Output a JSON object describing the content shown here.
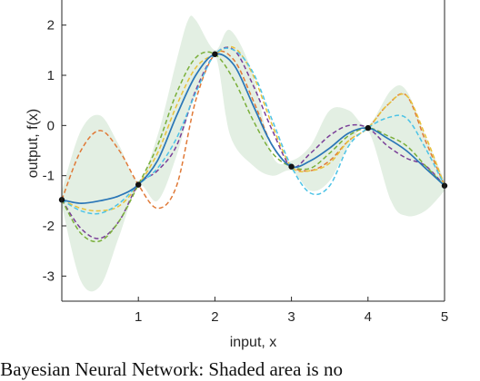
{
  "chart_data": {
    "type": "line",
    "xlabel": "input, x",
    "ylabel": "output, f(x)",
    "xlim": [
      0,
      5
    ],
    "ylim": [
      -3.5,
      2.5
    ],
    "xticks": [
      1,
      2,
      3,
      4,
      5
    ],
    "yticks": [
      -3,
      -2,
      -1,
      0,
      1,
      2
    ],
    "grid": false,
    "observations": {
      "x": [
        0,
        1,
        2,
        3,
        4,
        5
      ],
      "y": [
        -1.48,
        -1.18,
        1.42,
        -0.82,
        -0.05,
        -1.2
      ]
    },
    "shaded_band": {
      "x": [
        0,
        0.25,
        0.5,
        0.75,
        1,
        1.25,
        1.5,
        1.65,
        1.75,
        2,
        2.2,
        2.5,
        2.75,
        3,
        3.25,
        3.5,
        3.75,
        4,
        4.3,
        4.5,
        4.75,
        5
      ],
      "upper": [
        -1.3,
        -0.1,
        0.2,
        -0.4,
        -1.1,
        -0.2,
        1.3,
        2.1,
        2.1,
        1.5,
        1.9,
        1.0,
        -0.6,
        -0.7,
        -0.4,
        0.3,
        0.3,
        0.0,
        0.7,
        0.7,
        -0.2,
        -1.1
      ],
      "lower": [
        -1.6,
        -3.1,
        -3.2,
        -2.2,
        -1.2,
        -1.5,
        -0.6,
        0.2,
        0.6,
        1.4,
        -0.2,
        -0.8,
        -1.0,
        -0.9,
        -1.3,
        -1.1,
        -0.4,
        -0.1,
        -1.5,
        -1.8,
        -1.7,
        -1.3
      ]
    },
    "series": [
      {
        "style": "solid",
        "color": "#2a76b7",
        "x": [
          0,
          0.25,
          0.5,
          0.75,
          1,
          1.25,
          1.5,
          1.75,
          2,
          2.25,
          2.5,
          2.75,
          3,
          3.25,
          3.5,
          3.75,
          4,
          4.25,
          4.5,
          4.75,
          5
        ],
        "y": [
          -1.48,
          -1.55,
          -1.5,
          -1.4,
          -1.18,
          -0.7,
          0.2,
          1.0,
          1.42,
          1.2,
          0.4,
          -0.4,
          -0.82,
          -0.7,
          -0.45,
          -0.15,
          -0.05,
          -0.25,
          -0.5,
          -0.85,
          -1.2
        ]
      },
      {
        "style": "dashed",
        "color": "#e07a38",
        "x": [
          0,
          0.25,
          0.5,
          0.75,
          1,
          1.25,
          1.5,
          1.75,
          2,
          2.25,
          2.5,
          2.75,
          3,
          3.25,
          3.5,
          3.75,
          4,
          4.25,
          4.5,
          4.75,
          5
        ],
        "y": [
          -1.48,
          -0.5,
          -0.1,
          -0.5,
          -1.18,
          -1.65,
          -1.2,
          0.5,
          1.42,
          1.3,
          0.5,
          -0.4,
          -0.82,
          -0.9,
          -0.7,
          -0.3,
          -0.05,
          0.4,
          0.6,
          -0.3,
          -1.2
        ]
      },
      {
        "style": "dashed",
        "color": "#e8c13a",
        "x": [
          0,
          0.25,
          0.5,
          0.75,
          1,
          1.25,
          1.5,
          1.75,
          2,
          2.25,
          2.5,
          2.75,
          3,
          3.25,
          3.5,
          3.75,
          4,
          4.25,
          4.5,
          4.75,
          5
        ],
        "y": [
          -1.48,
          -1.65,
          -1.7,
          -1.6,
          -1.18,
          -0.55,
          0.4,
          1.15,
          1.42,
          1.55,
          1.0,
          0.0,
          -0.82,
          -0.9,
          -0.75,
          -0.3,
          -0.05,
          0.4,
          0.6,
          -0.2,
          -1.2
        ]
      },
      {
        "style": "dashed",
        "color": "#7a3e98",
        "x": [
          0,
          0.25,
          0.5,
          0.75,
          1,
          1.25,
          1.5,
          1.75,
          2,
          2.25,
          2.5,
          2.75,
          3,
          3.25,
          3.5,
          3.75,
          4,
          4.25,
          4.5,
          4.75,
          5
        ],
        "y": [
          -1.48,
          -2.05,
          -2.25,
          -1.9,
          -1.18,
          -0.9,
          -0.4,
          0.7,
          1.42,
          1.5,
          0.8,
          -0.1,
          -0.82,
          -0.55,
          -0.2,
          0.0,
          -0.05,
          -0.4,
          -0.65,
          -0.8,
          -1.2
        ]
      },
      {
        "style": "dashed",
        "color": "#7aaf3a",
        "x": [
          0,
          0.25,
          0.5,
          0.75,
          1,
          1.25,
          1.5,
          1.75,
          2,
          2.25,
          2.5,
          2.75,
          3,
          3.25,
          3.5,
          3.75,
          4,
          4.25,
          4.5,
          4.75,
          5
        ],
        "y": [
          -1.48,
          -2.15,
          -2.3,
          -1.9,
          -1.18,
          -0.4,
          0.65,
          1.35,
          1.42,
          0.9,
          0.1,
          -0.55,
          -0.82,
          -0.85,
          -0.55,
          -0.2,
          -0.05,
          -0.2,
          -0.4,
          -0.8,
          -1.2
        ]
      },
      {
        "style": "dashed",
        "color": "#4cc3e6",
        "x": [
          0,
          0.25,
          0.5,
          0.75,
          1,
          1.25,
          1.5,
          1.75,
          2,
          2.25,
          2.5,
          2.75,
          3,
          3.25,
          3.5,
          3.75,
          4,
          4.25,
          4.5,
          4.75,
          5
        ],
        "y": [
          -1.48,
          -1.7,
          -1.75,
          -1.55,
          -1.18,
          -0.85,
          -0.25,
          0.65,
          1.42,
          1.5,
          1.05,
          0.1,
          -0.82,
          -1.35,
          -1.2,
          -0.4,
          -0.05,
          0.15,
          0.15,
          -0.45,
          -1.2
        ]
      }
    ],
    "colors": {
      "band": "#e3efe3",
      "axis": "#262626",
      "marker": "#111111"
    }
  },
  "caption": "r Bayesian Neural Network: Shaded area is no"
}
